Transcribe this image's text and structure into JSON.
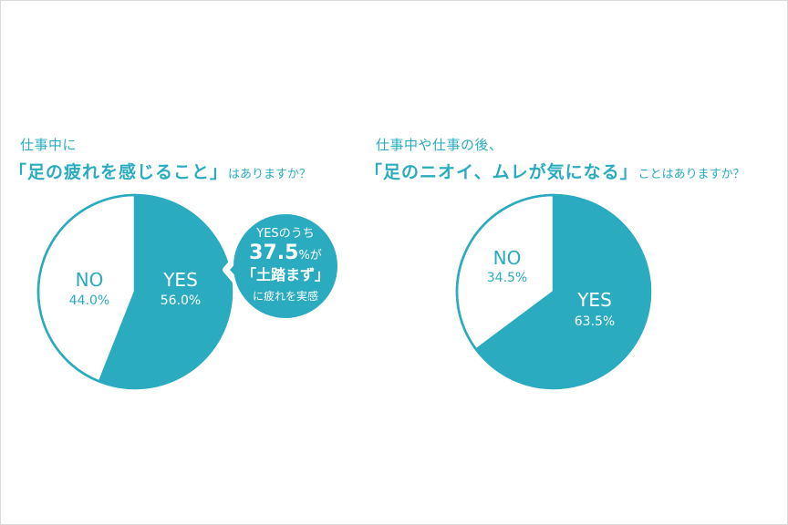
{
  "chart_data": [
    {
      "type": "pie",
      "question": {
        "line1": "仕事中に",
        "open_bracket": "「",
        "emphasis": "足の疲れを感じること",
        "close_bracket": "」",
        "tail": "はありますか？"
      },
      "slices": [
        {
          "label": "YES",
          "value": 56.0,
          "display": "56.0%"
        },
        {
          "label": "NO",
          "value": 44.0,
          "display": "44.0%"
        }
      ],
      "colors": {
        "yes": "#2aabbf",
        "no": "#ffffff",
        "outline": "#2aabbf"
      },
      "callout": {
        "line1": "YESのうち",
        "value": "37.5",
        "unit": "%が",
        "highlight": "「土踏まず」",
        "line4": "に疲れを実感"
      }
    },
    {
      "type": "pie",
      "question": {
        "line1": "仕事中や仕事の後、",
        "open_bracket": "「",
        "emphasis": "足のニオイ、ムレが気になる",
        "close_bracket": "」",
        "tail": "ことはありますか？"
      },
      "slices": [
        {
          "label": "YES",
          "value": 63.5,
          "display": "63.5%"
        },
        {
          "label": "NO",
          "value": 34.5,
          "display": "34.5%"
        }
      ],
      "colors": {
        "yes": "#2aabbf",
        "no": "#ffffff",
        "outline": "#2aabbf"
      }
    }
  ]
}
